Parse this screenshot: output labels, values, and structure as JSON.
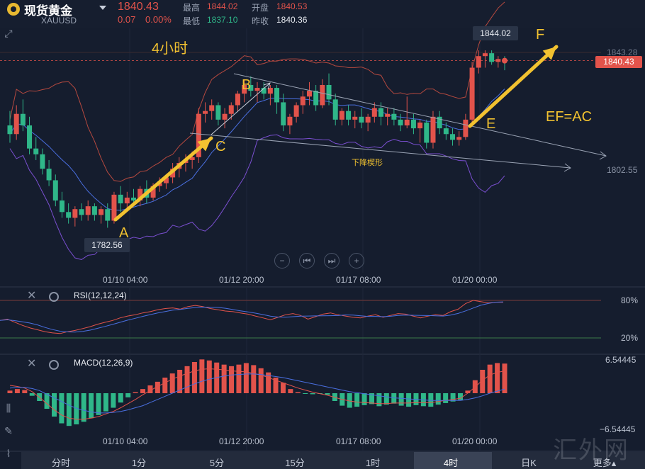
{
  "header": {
    "name": "现货黄金",
    "code": "XAUUSD",
    "price": "1840.43",
    "change": "0.07",
    "change_pct": "0.00%",
    "high_label": "最高",
    "high": "1844.02",
    "low_label": "最低",
    "low": "1837.10",
    "open_label": "开盘",
    "open": "1840.53",
    "prev_label": "昨收",
    "prev": "1840.36"
  },
  "colors": {
    "up": "#e2534b",
    "down": "#2fb789",
    "accent": "#f2c230",
    "bg": "#151d2e"
  },
  "price_tag": "1840.43",
  "right_axis": {
    "top": "1843.28",
    "mid": "1802.55",
    "rsi_top": "80%",
    "rsi_bottom": "20%",
    "macd_top": "6.54445",
    "macd_bottom": "−6.54445"
  },
  "time_labels": [
    "01/10 04:00",
    "01/12 20:00",
    "01/17 08:00",
    "01/20 00:00"
  ],
  "callouts": {
    "high": "1844.02",
    "low": "1782.56"
  },
  "annotations": {
    "title": "4小时",
    "A": "A",
    "B": "B",
    "C": "C",
    "E": "E",
    "F": "F",
    "formula": "EF=AC",
    "wedge": "下降楔形"
  },
  "panes": {
    "rsi": "RSI(12,12,24)",
    "macd": "MACD(12,26,9)"
  },
  "controls": [
    "zoom-out",
    "prev",
    "next",
    "zoom-in"
  ],
  "tabs": [
    "分时",
    "1分",
    "5分",
    "15分",
    "1时",
    "4时",
    "日K",
    "更多"
  ],
  "active_tab": "4时",
  "more_caret": "▴",
  "watermark": "汇外网",
  "chart_data": {
    "type": "candlestick",
    "candles": [
      {
        "o": 1818,
        "h": 1823,
        "l": 1812,
        "c": 1815
      },
      {
        "o": 1815,
        "h": 1825,
        "l": 1813,
        "c": 1822
      },
      {
        "o": 1822,
        "h": 1827,
        "l": 1816,
        "c": 1818
      },
      {
        "o": 1818,
        "h": 1821,
        "l": 1808,
        "c": 1810
      },
      {
        "o": 1810,
        "h": 1814,
        "l": 1806,
        "c": 1808
      },
      {
        "o": 1808,
        "h": 1810,
        "l": 1801,
        "c": 1803
      },
      {
        "o": 1803,
        "h": 1806,
        "l": 1797,
        "c": 1799
      },
      {
        "o": 1799,
        "h": 1801,
        "l": 1790,
        "c": 1792
      },
      {
        "o": 1792,
        "h": 1795,
        "l": 1786,
        "c": 1788
      },
      {
        "o": 1788,
        "h": 1791,
        "l": 1784,
        "c": 1786
      },
      {
        "o": 1786,
        "h": 1790,
        "l": 1783,
        "c": 1789
      },
      {
        "o": 1789,
        "h": 1791,
        "l": 1785,
        "c": 1787
      },
      {
        "o": 1787,
        "h": 1792,
        "l": 1785,
        "c": 1790
      },
      {
        "o": 1790,
        "h": 1791,
        "l": 1785,
        "c": 1787
      },
      {
        "o": 1787,
        "h": 1790,
        "l": 1784,
        "c": 1789
      },
      {
        "o": 1789,
        "h": 1791,
        "l": 1782.56,
        "c": 1785
      },
      {
        "o": 1785,
        "h": 1795,
        "l": 1784,
        "c": 1794
      },
      {
        "o": 1794,
        "h": 1797,
        "l": 1788,
        "c": 1791
      },
      {
        "o": 1791,
        "h": 1795,
        "l": 1789,
        "c": 1793
      },
      {
        "o": 1793,
        "h": 1796,
        "l": 1790,
        "c": 1792
      },
      {
        "o": 1792,
        "h": 1797,
        "l": 1790,
        "c": 1796
      },
      {
        "o": 1796,
        "h": 1799,
        "l": 1791,
        "c": 1793
      },
      {
        "o": 1793,
        "h": 1798,
        "l": 1792,
        "c": 1797
      },
      {
        "o": 1797,
        "h": 1800,
        "l": 1795,
        "c": 1798
      },
      {
        "o": 1798,
        "h": 1801,
        "l": 1796,
        "c": 1800
      },
      {
        "o": 1800,
        "h": 1805,
        "l": 1798,
        "c": 1803
      },
      {
        "o": 1803,
        "h": 1807,
        "l": 1800,
        "c": 1805
      },
      {
        "o": 1805,
        "h": 1808,
        "l": 1802,
        "c": 1806
      },
      {
        "o": 1806,
        "h": 1809,
        "l": 1803,
        "c": 1807
      },
      {
        "o": 1807,
        "h": 1824,
        "l": 1805,
        "c": 1822
      },
      {
        "o": 1822,
        "h": 1826,
        "l": 1819,
        "c": 1823
      },
      {
        "o": 1823,
        "h": 1827,
        "l": 1820,
        "c": 1825
      },
      {
        "o": 1825,
        "h": 1826,
        "l": 1818,
        "c": 1820
      },
      {
        "o": 1820,
        "h": 1824,
        "l": 1817,
        "c": 1822
      },
      {
        "o": 1822,
        "h": 1826,
        "l": 1820,
        "c": 1825
      },
      {
        "o": 1825,
        "h": 1830,
        "l": 1823,
        "c": 1829
      },
      {
        "o": 1829,
        "h": 1834,
        "l": 1826,
        "c": 1832
      },
      {
        "o": 1832,
        "h": 1835,
        "l": 1828,
        "c": 1830
      },
      {
        "o": 1830,
        "h": 1833,
        "l": 1826,
        "c": 1831
      },
      {
        "o": 1831,
        "h": 1833,
        "l": 1827,
        "c": 1829
      },
      {
        "o": 1829,
        "h": 1832,
        "l": 1825,
        "c": 1831
      },
      {
        "o": 1831,
        "h": 1832,
        "l": 1822,
        "c": 1826
      },
      {
        "o": 1826,
        "h": 1829,
        "l": 1816,
        "c": 1818
      },
      {
        "o": 1818,
        "h": 1822,
        "l": 1815,
        "c": 1821
      },
      {
        "o": 1821,
        "h": 1826,
        "l": 1819,
        "c": 1825
      },
      {
        "o": 1825,
        "h": 1830,
        "l": 1822,
        "c": 1828
      },
      {
        "o": 1828,
        "h": 1833,
        "l": 1825,
        "c": 1830
      },
      {
        "o": 1830,
        "h": 1832,
        "l": 1823,
        "c": 1825
      },
      {
        "o": 1825,
        "h": 1834,
        "l": 1824,
        "c": 1832
      },
      {
        "o": 1832,
        "h": 1836,
        "l": 1825,
        "c": 1827
      },
      {
        "o": 1827,
        "h": 1829,
        "l": 1818,
        "c": 1820
      },
      {
        "o": 1820,
        "h": 1824,
        "l": 1818,
        "c": 1823
      },
      {
        "o": 1823,
        "h": 1825,
        "l": 1818,
        "c": 1820
      },
      {
        "o": 1820,
        "h": 1823,
        "l": 1817,
        "c": 1821
      },
      {
        "o": 1821,
        "h": 1824,
        "l": 1817,
        "c": 1819
      },
      {
        "o": 1819,
        "h": 1822,
        "l": 1816,
        "c": 1821
      },
      {
        "o": 1821,
        "h": 1826,
        "l": 1819,
        "c": 1824
      },
      {
        "o": 1824,
        "h": 1826,
        "l": 1818,
        "c": 1821
      },
      {
        "o": 1821,
        "h": 1824,
        "l": 1818,
        "c": 1822
      },
      {
        "o": 1822,
        "h": 1824,
        "l": 1818,
        "c": 1820
      },
      {
        "o": 1820,
        "h": 1822,
        "l": 1816,
        "c": 1818
      },
      {
        "o": 1818,
        "h": 1828,
        "l": 1817,
        "c": 1820
      },
      {
        "o": 1820,
        "h": 1822,
        "l": 1815,
        "c": 1817
      },
      {
        "o": 1817,
        "h": 1820,
        "l": 1812,
        "c": 1819
      },
      {
        "o": 1819,
        "h": 1820,
        "l": 1810,
        "c": 1812
      },
      {
        "o": 1812,
        "h": 1823,
        "l": 1810,
        "c": 1821
      },
      {
        "o": 1821,
        "h": 1823,
        "l": 1815,
        "c": 1817
      },
      {
        "o": 1817,
        "h": 1819,
        "l": 1813,
        "c": 1815
      },
      {
        "o": 1815,
        "h": 1817,
        "l": 1811,
        "c": 1813
      },
      {
        "o": 1813,
        "h": 1816,
        "l": 1811,
        "c": 1814
      },
      {
        "o": 1814,
        "h": 1822,
        "l": 1813,
        "c": 1820
      },
      {
        "o": 1820,
        "h": 1840,
        "l": 1818,
        "c": 1838
      },
      {
        "o": 1838,
        "h": 1844,
        "l": 1836,
        "c": 1842
      },
      {
        "o": 1842,
        "h": 1844.02,
        "l": 1838,
        "c": 1843
      },
      {
        "o": 1843,
        "h": 1844,
        "l": 1839,
        "c": 1840
      },
      {
        "o": 1840,
        "h": 1842,
        "l": 1838,
        "c": 1841
      },
      {
        "o": 1841,
        "h": 1842,
        "l": 1837.1,
        "c": 1840.43
      }
    ],
    "rsi": [
      48,
      50,
      45,
      40,
      36,
      33,
      30,
      28,
      27,
      30,
      32,
      35,
      38,
      42,
      45,
      48,
      52,
      55,
      57,
      60,
      62,
      65,
      67,
      68,
      66,
      70,
      72,
      70,
      67,
      65,
      63,
      62,
      60,
      58,
      55,
      52,
      49,
      53,
      57,
      59,
      56,
      50,
      54,
      58,
      60,
      57,
      55,
      53,
      52,
      55,
      57,
      53,
      56,
      59,
      58,
      55,
      52,
      55,
      57,
      56,
      62,
      66,
      75,
      80,
      78,
      76,
      77,
      77
    ],
    "macd_hist": [
      0.5,
      0.8,
      0.6,
      -0.5,
      -1.5,
      -3.0,
      -4.5,
      -5.8,
      -6.3,
      -6.0,
      -5.5,
      -4.8,
      -4.2,
      -3.5,
      -2.8,
      -1.8,
      -0.8,
      0.2,
      0.8,
      1.5,
      2.2,
      3.0,
      3.8,
      4.5,
      5.2,
      6.0,
      6.5,
      6.3,
      5.9,
      5.5,
      5.2,
      5.5,
      5.8,
      5.4,
      4.8,
      4.0,
      3.0,
      2.0,
      0.8,
      0.2,
      -0.1,
      -0.2,
      -0.1,
      -0.3,
      -1.5,
      -2.4,
      -2.8,
      -2.6,
      -2.3,
      -2.1,
      -2.5,
      -2.2,
      -2.0,
      -2.4,
      -2.6,
      -2.3,
      -2.5,
      -2.6,
      -2.2,
      -1.9,
      -1.6,
      -1.3,
      0.5,
      2.5,
      4.5,
      5.5,
      5.8,
      5.7
    ],
    "dif": [
      1.5,
      1.3,
      1.0,
      0.3,
      -0.8,
      -2.0,
      -3.2,
      -4.2,
      -4.8,
      -5.0,
      -5.0,
      -4.8,
      -4.5,
      -4.0,
      -3.5,
      -2.8,
      -2.0,
      -1.2,
      -0.3,
      0.5,
      1.3,
      2.0,
      2.7,
      3.3,
      3.8,
      4.3,
      4.6,
      4.7,
      4.6,
      4.5,
      4.3,
      4.2,
      4.1,
      3.8,
      3.5,
      3.0,
      2.5,
      2.0,
      1.5,
      1.0,
      0.6,
      0.2,
      -0.1,
      -0.4,
      -0.8,
      -1.2,
      -1.5,
      -1.7,
      -1.8,
      -1.9,
      -2.0,
      -2.0,
      -1.9,
      -1.9,
      -1.9,
      -1.8,
      -1.8,
      -1.8,
      -1.6,
      -1.4,
      -1.2,
      -1.0,
      0.0,
      1.2,
      2.5,
      3.5,
      4.0,
      4.3
    ],
    "dea": [
      1.0,
      1.1,
      1.1,
      0.9,
      0.5,
      -0.2,
      -0.9,
      -1.6,
      -2.3,
      -2.9,
      -3.3,
      -3.6,
      -3.8,
      -3.8,
      -3.7,
      -3.5,
      -3.2,
      -2.8,
      -2.4,
      -1.8,
      -1.2,
      -0.6,
      0.0,
      0.6,
      1.2,
      1.8,
      2.3,
      2.7,
      3.0,
      3.3,
      3.5,
      3.6,
      3.7,
      3.7,
      3.6,
      3.4,
      3.2,
      3.0,
      2.7,
      2.4,
      2.1,
      1.8,
      1.5,
      1.2,
      0.9,
      0.6,
      0.3,
      0.1,
      -0.1,
      -0.3,
      -0.5,
      -0.7,
      -0.9,
      -1.0,
      -1.1,
      -1.2,
      -1.3,
      -1.4,
      -1.4,
      -1.4,
      -1.4,
      -1.4,
      -1.2,
      -0.9,
      -0.5,
      0.0,
      0.4,
      0.8
    ],
    "rsi_levels": [
      20,
      80
    ],
    "macd_range": [
      -6.54445,
      6.54445
    ]
  }
}
